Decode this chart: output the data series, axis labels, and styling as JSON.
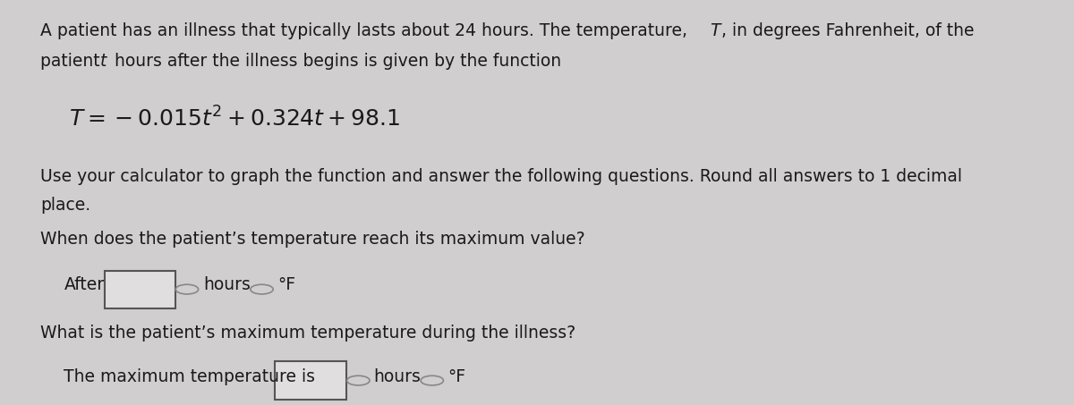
{
  "bg_color": "#d0cece",
  "text_color": "#1a1a1a",
  "title_line1": "A patient has an illness that typically lasts about 24 hours. The temperature, ",
  "title_italic_T": "T",
  "title_line1_end": ", in degrees Fahrenheit, of the",
  "title_line2": "patient ",
  "title_italic_t": "t",
  "title_line2_end": " hours after the illness begins is given by the function",
  "equation": "T = −0.015t² + 0.324t + 98.1",
  "instruction": "Use your calculator to graph the function and answer the following questions. Round all answers to 1 decimal",
  "instruction2": "place.",
  "question1": "When does the patient’s temperature reach its maximum value?",
  "answer1_prefix": "After",
  "answer1_suffix1": "hours",
  "answer1_suffix2": "°F",
  "question2": "What is the patient’s maximum temperature during the illness?",
  "answer2_prefix": "The maximum temperature is",
  "answer2_suffix1": "hours",
  "answer2_suffix2": "°F",
  "font_size_body": 13.5,
  "font_size_equation": 18,
  "font_size_answer": 13.5
}
